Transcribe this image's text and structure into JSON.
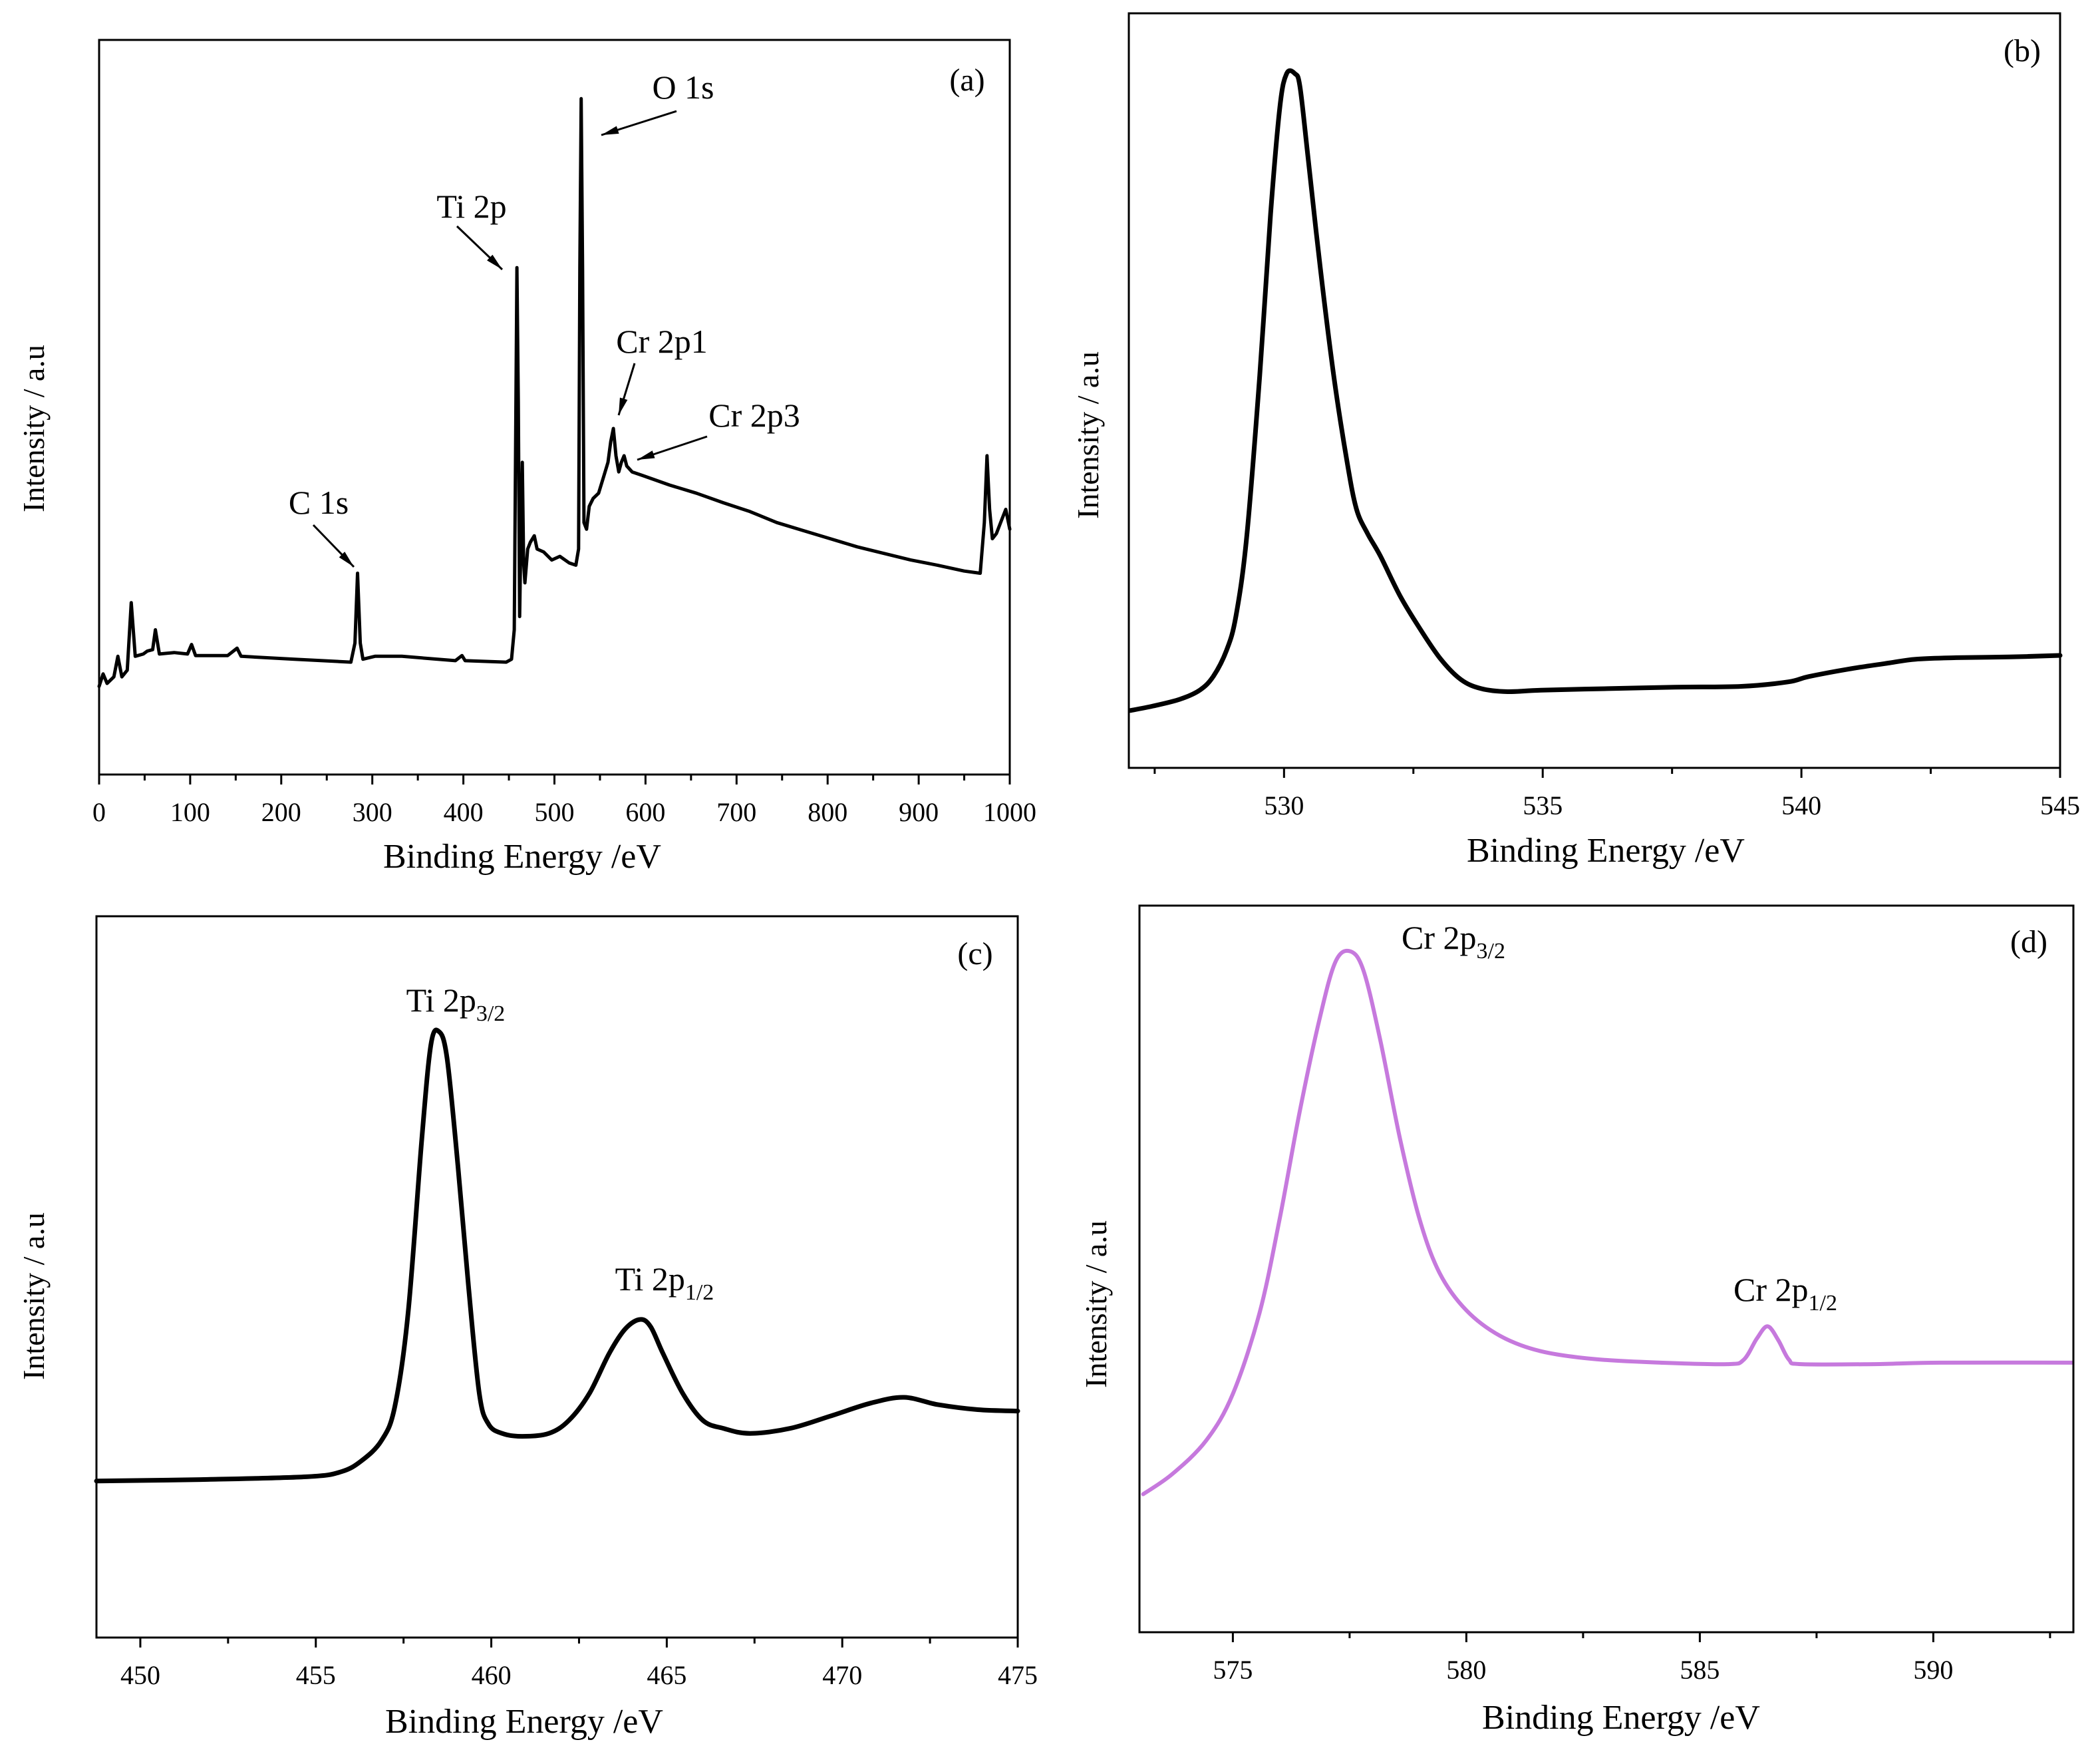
{
  "figure": {
    "background": "#ffffff"
  },
  "chart_data": [
    {
      "panel": "(a)",
      "type": "line",
      "xlabel": "Binding Energy /eV",
      "ylabel": "Intensity / a.u",
      "xlim": [
        0,
        1000
      ],
      "ylim": [
        0,
        100
      ],
      "xticks": [
        0,
        100,
        200,
        300,
        400,
        500,
        600,
        700,
        800,
        900,
        1000
      ],
      "grid": false,
      "series": [
        {
          "color": "#000000",
          "points": [
            [
              0,
              12.0
            ],
            [
              4.4,
              13.7
            ],
            [
              8.8,
              12.4
            ],
            [
              16.2,
              13.3
            ],
            [
              20.6,
              16.1
            ],
            [
              25.0,
              13.3
            ],
            [
              30.9,
              14.2
            ],
            [
              35.3,
              23.4
            ],
            [
              39.7,
              16.1
            ],
            [
              48.5,
              16.4
            ],
            [
              52.9,
              16.8
            ],
            [
              58.8,
              17.0
            ],
            [
              61.8,
              19.7
            ],
            [
              66.2,
              16.4
            ],
            [
              82.4,
              16.6
            ],
            [
              97.1,
              16.4
            ],
            [
              101.5,
              17.7
            ],
            [
              105.9,
              16.2
            ],
            [
              141.2,
              16.2
            ],
            [
              151.5,
              17.2
            ],
            [
              155.9,
              16.1
            ],
            [
              214.7,
              15.7
            ],
            [
              276.5,
              15.3
            ],
            [
              280.9,
              17.9
            ],
            [
              283.8,
              27.4
            ],
            [
              286.8,
              17.9
            ],
            [
              289.7,
              15.7
            ],
            [
              302.9,
              16.1
            ],
            [
              332.4,
              16.1
            ],
            [
              391.2,
              15.5
            ],
            [
              398.5,
              16.2
            ],
            [
              402.0,
              15.5
            ],
            [
              447.1,
              15.3
            ],
            [
              452.9,
              15.7
            ],
            [
              455.9,
              19.7
            ],
            [
              458.8,
              69.0
            ],
            [
              460.3,
              50.7
            ],
            [
              461.8,
              21.5
            ],
            [
              463.2,
              32.5
            ],
            [
              464.7,
              42.5
            ],
            [
              466.2,
              28.8
            ],
            [
              467.6,
              26.1
            ],
            [
              470.6,
              30.7
            ],
            [
              473.5,
              31.6
            ],
            [
              477.9,
              32.5
            ],
            [
              480.9,
              30.7
            ],
            [
              488.2,
              30.3
            ],
            [
              497.1,
              29.2
            ],
            [
              505.9,
              29.7
            ],
            [
              516.2,
              28.8
            ],
            [
              523.5,
              28.5
            ],
            [
              526.5,
              30.7
            ],
            [
              527.9,
              69.0
            ],
            [
              529.4,
              92.0
            ],
            [
              530.9,
              69.0
            ],
            [
              532.4,
              34.3
            ],
            [
              535.3,
              33.4
            ],
            [
              538.2,
              36.5
            ],
            [
              542.6,
              37.6
            ],
            [
              548.5,
              38.3
            ],
            [
              554.4,
              40.7
            ],
            [
              558.8,
              42.5
            ],
            [
              561.8,
              45.3
            ],
            [
              564.7,
              47.1
            ],
            [
              567.6,
              43.4
            ],
            [
              570.6,
              41.2
            ],
            [
              573.5,
              42.5
            ],
            [
              576.5,
              43.4
            ],
            [
              579.4,
              42.0
            ],
            [
              585.3,
              41.2
            ],
            [
              597.1,
              40.7
            ],
            [
              626.5,
              39.4
            ],
            [
              655.9,
              38.3
            ],
            [
              685.3,
              37.0
            ],
            [
              714.7,
              35.8
            ],
            [
              744.1,
              34.3
            ],
            [
              773.5,
              33.2
            ],
            [
              802.9,
              32.1
            ],
            [
              832.4,
              31.0
            ],
            [
              861.8,
              30.1
            ],
            [
              891.2,
              29.2
            ],
            [
              920.6,
              28.5
            ],
            [
              950.0,
              27.7
            ],
            [
              967.6,
              27.4
            ],
            [
              972.1,
              34.3
            ],
            [
              975.0,
              43.4
            ],
            [
              977.9,
              36.1
            ],
            [
              980.9,
              32.1
            ],
            [
              985.3,
              32.8
            ],
            [
              991.2,
              34.7
            ],
            [
              995.6,
              36.1
            ],
            [
              1000,
              33.4
            ]
          ]
        }
      ],
      "annotations": [
        {
          "text": "O 1s"
        },
        {
          "text": "Ti 2p"
        },
        {
          "text": "Cr 2p1"
        },
        {
          "text": "Cr 2p3"
        },
        {
          "text": "C 1s"
        }
      ]
    },
    {
      "panel": "(b)",
      "type": "line",
      "xlabel": "Binding Energy /eV",
      "ylabel": "Intensity / a.u",
      "xlim": [
        527,
        545
      ],
      "ylim": [
        0,
        100
      ],
      "xticks": [
        530,
        535,
        540,
        545
      ],
      "grid": false,
      "series": [
        {
          "color": "#000000",
          "points": [
            [
              527.03,
              7.6
            ],
            [
              527.47,
              8.2
            ],
            [
              527.99,
              9.1
            ],
            [
              528.37,
              10.3
            ],
            [
              528.63,
              12.1
            ],
            [
              528.89,
              15.6
            ],
            [
              529.07,
              20.1
            ],
            [
              529.28,
              30.7
            ],
            [
              529.53,
              52.0
            ],
            [
              529.74,
              73.4
            ],
            [
              529.92,
              87.6
            ],
            [
              530.05,
              92.0
            ],
            [
              530.21,
              92.0
            ],
            [
              530.31,
              90.2
            ],
            [
              530.47,
              80.5
            ],
            [
              530.7,
              66.3
            ],
            [
              530.96,
              52.0
            ],
            [
              531.22,
              40.5
            ],
            [
              531.4,
              34.3
            ],
            [
              531.61,
              31.1
            ],
            [
              531.86,
              28.1
            ],
            [
              532.25,
              22.7
            ],
            [
              532.64,
              18.3
            ],
            [
              533.03,
              14.4
            ],
            [
              533.42,
              11.7
            ],
            [
              533.81,
              10.5
            ],
            [
              534.32,
              10.1
            ],
            [
              534.97,
              10.3
            ],
            [
              536.26,
              10.5
            ],
            [
              537.55,
              10.7
            ],
            [
              538.84,
              10.8
            ],
            [
              539.75,
              11.4
            ],
            [
              540.14,
              12.1
            ],
            [
              540.92,
              13.1
            ],
            [
              541.69,
              13.9
            ],
            [
              542.21,
              14.4
            ],
            [
              542.99,
              14.6
            ],
            [
              544.02,
              14.7
            ],
            [
              545.0,
              14.9
            ]
          ]
        }
      ],
      "annotations": []
    },
    {
      "panel": "(c)",
      "type": "line",
      "xlabel": "Binding Energy /eV",
      "ylabel": "Intensity / a.u",
      "xlim": [
        448.75,
        475
      ],
      "ylim": [
        0,
        100
      ],
      "xticks": [
        450,
        455,
        460,
        465,
        470,
        475
      ],
      "grid": false,
      "series": [
        {
          "color": "#000000",
          "points": [
            [
              448.75,
              21.7
            ],
            [
              451.72,
              21.9
            ],
            [
              454.77,
              22.3
            ],
            [
              455.73,
              23.0
            ],
            [
              456.3,
              24.5
            ],
            [
              456.87,
              27.3
            ],
            [
              457.25,
              32.0
            ],
            [
              457.63,
              45.0
            ],
            [
              458.02,
              69.1
            ],
            [
              458.28,
              82.2
            ],
            [
              458.51,
              84.0
            ],
            [
              458.74,
              80.3
            ],
            [
              459.05,
              65.4
            ],
            [
              459.35,
              48.7
            ],
            [
              459.66,
              33.8
            ],
            [
              459.92,
              29.6
            ],
            [
              460.31,
              28.3
            ],
            [
              460.88,
              27.9
            ],
            [
              461.64,
              28.3
            ],
            [
              462.21,
              30.1
            ],
            [
              462.79,
              33.8
            ],
            [
              463.36,
              39.4
            ],
            [
              463.82,
              42.8
            ],
            [
              464.24,
              44.1
            ],
            [
              464.54,
              43.1
            ],
            [
              464.89,
              39.4
            ],
            [
              465.46,
              33.8
            ],
            [
              466.03,
              30.1
            ],
            [
              466.61,
              29.0
            ],
            [
              467.37,
              28.3
            ],
            [
              468.52,
              29.0
            ],
            [
              469.66,
              30.7
            ],
            [
              470.81,
              32.5
            ],
            [
              471.76,
              33.3
            ],
            [
              472.72,
              32.3
            ],
            [
              473.86,
              31.6
            ],
            [
              475.0,
              31.4
            ]
          ]
        }
      ],
      "annotations": [
        {
          "text": "Ti 2p",
          "sub": "3/2"
        },
        {
          "text": "Ti 2p",
          "sub": "1/2"
        }
      ]
    },
    {
      "panel": "(d)",
      "type": "line",
      "xlabel": "Binding Energy /eV",
      "ylabel": "Intensity / a.u",
      "xlim": [
        573,
        593
      ],
      "ylim": [
        0,
        100
      ],
      "xticks": [
        575,
        580,
        585,
        590
      ],
      "grid": false,
      "series": [
        {
          "color": "#c679dd",
          "points": [
            [
              573.08,
              19.0
            ],
            [
              573.71,
              21.8
            ],
            [
              574.43,
              26.4
            ],
            [
              575.0,
              32.8
            ],
            [
              575.57,
              43.9
            ],
            [
              576.0,
              56.8
            ],
            [
              576.43,
              71.6
            ],
            [
              576.86,
              84.5
            ],
            [
              577.2,
              92.3
            ],
            [
              577.52,
              93.7
            ],
            [
              577.8,
              91.0
            ],
            [
              578.15,
              81.7
            ],
            [
              578.58,
              67.9
            ],
            [
              579.0,
              56.8
            ],
            [
              579.43,
              49.4
            ],
            [
              580.0,
              44.3
            ],
            [
              580.72,
              40.8
            ],
            [
              581.58,
              38.7
            ],
            [
              582.73,
              37.6
            ],
            [
              584.16,
              37.1
            ],
            [
              585.59,
              36.9
            ],
            [
              585.94,
              37.5
            ],
            [
              586.22,
              40.4
            ],
            [
              586.45,
              42.1
            ],
            [
              586.68,
              40.2
            ],
            [
              586.91,
              37.5
            ],
            [
              587.17,
              36.9
            ],
            [
              588.74,
              36.9
            ],
            [
              590.17,
              37.1
            ],
            [
              592.98,
              37.1
            ]
          ]
        }
      ],
      "annotations": [
        {
          "text": "Cr 2p",
          "sub": "3/2"
        },
        {
          "text": "Cr 2p",
          "sub": "1/2"
        }
      ]
    }
  ]
}
